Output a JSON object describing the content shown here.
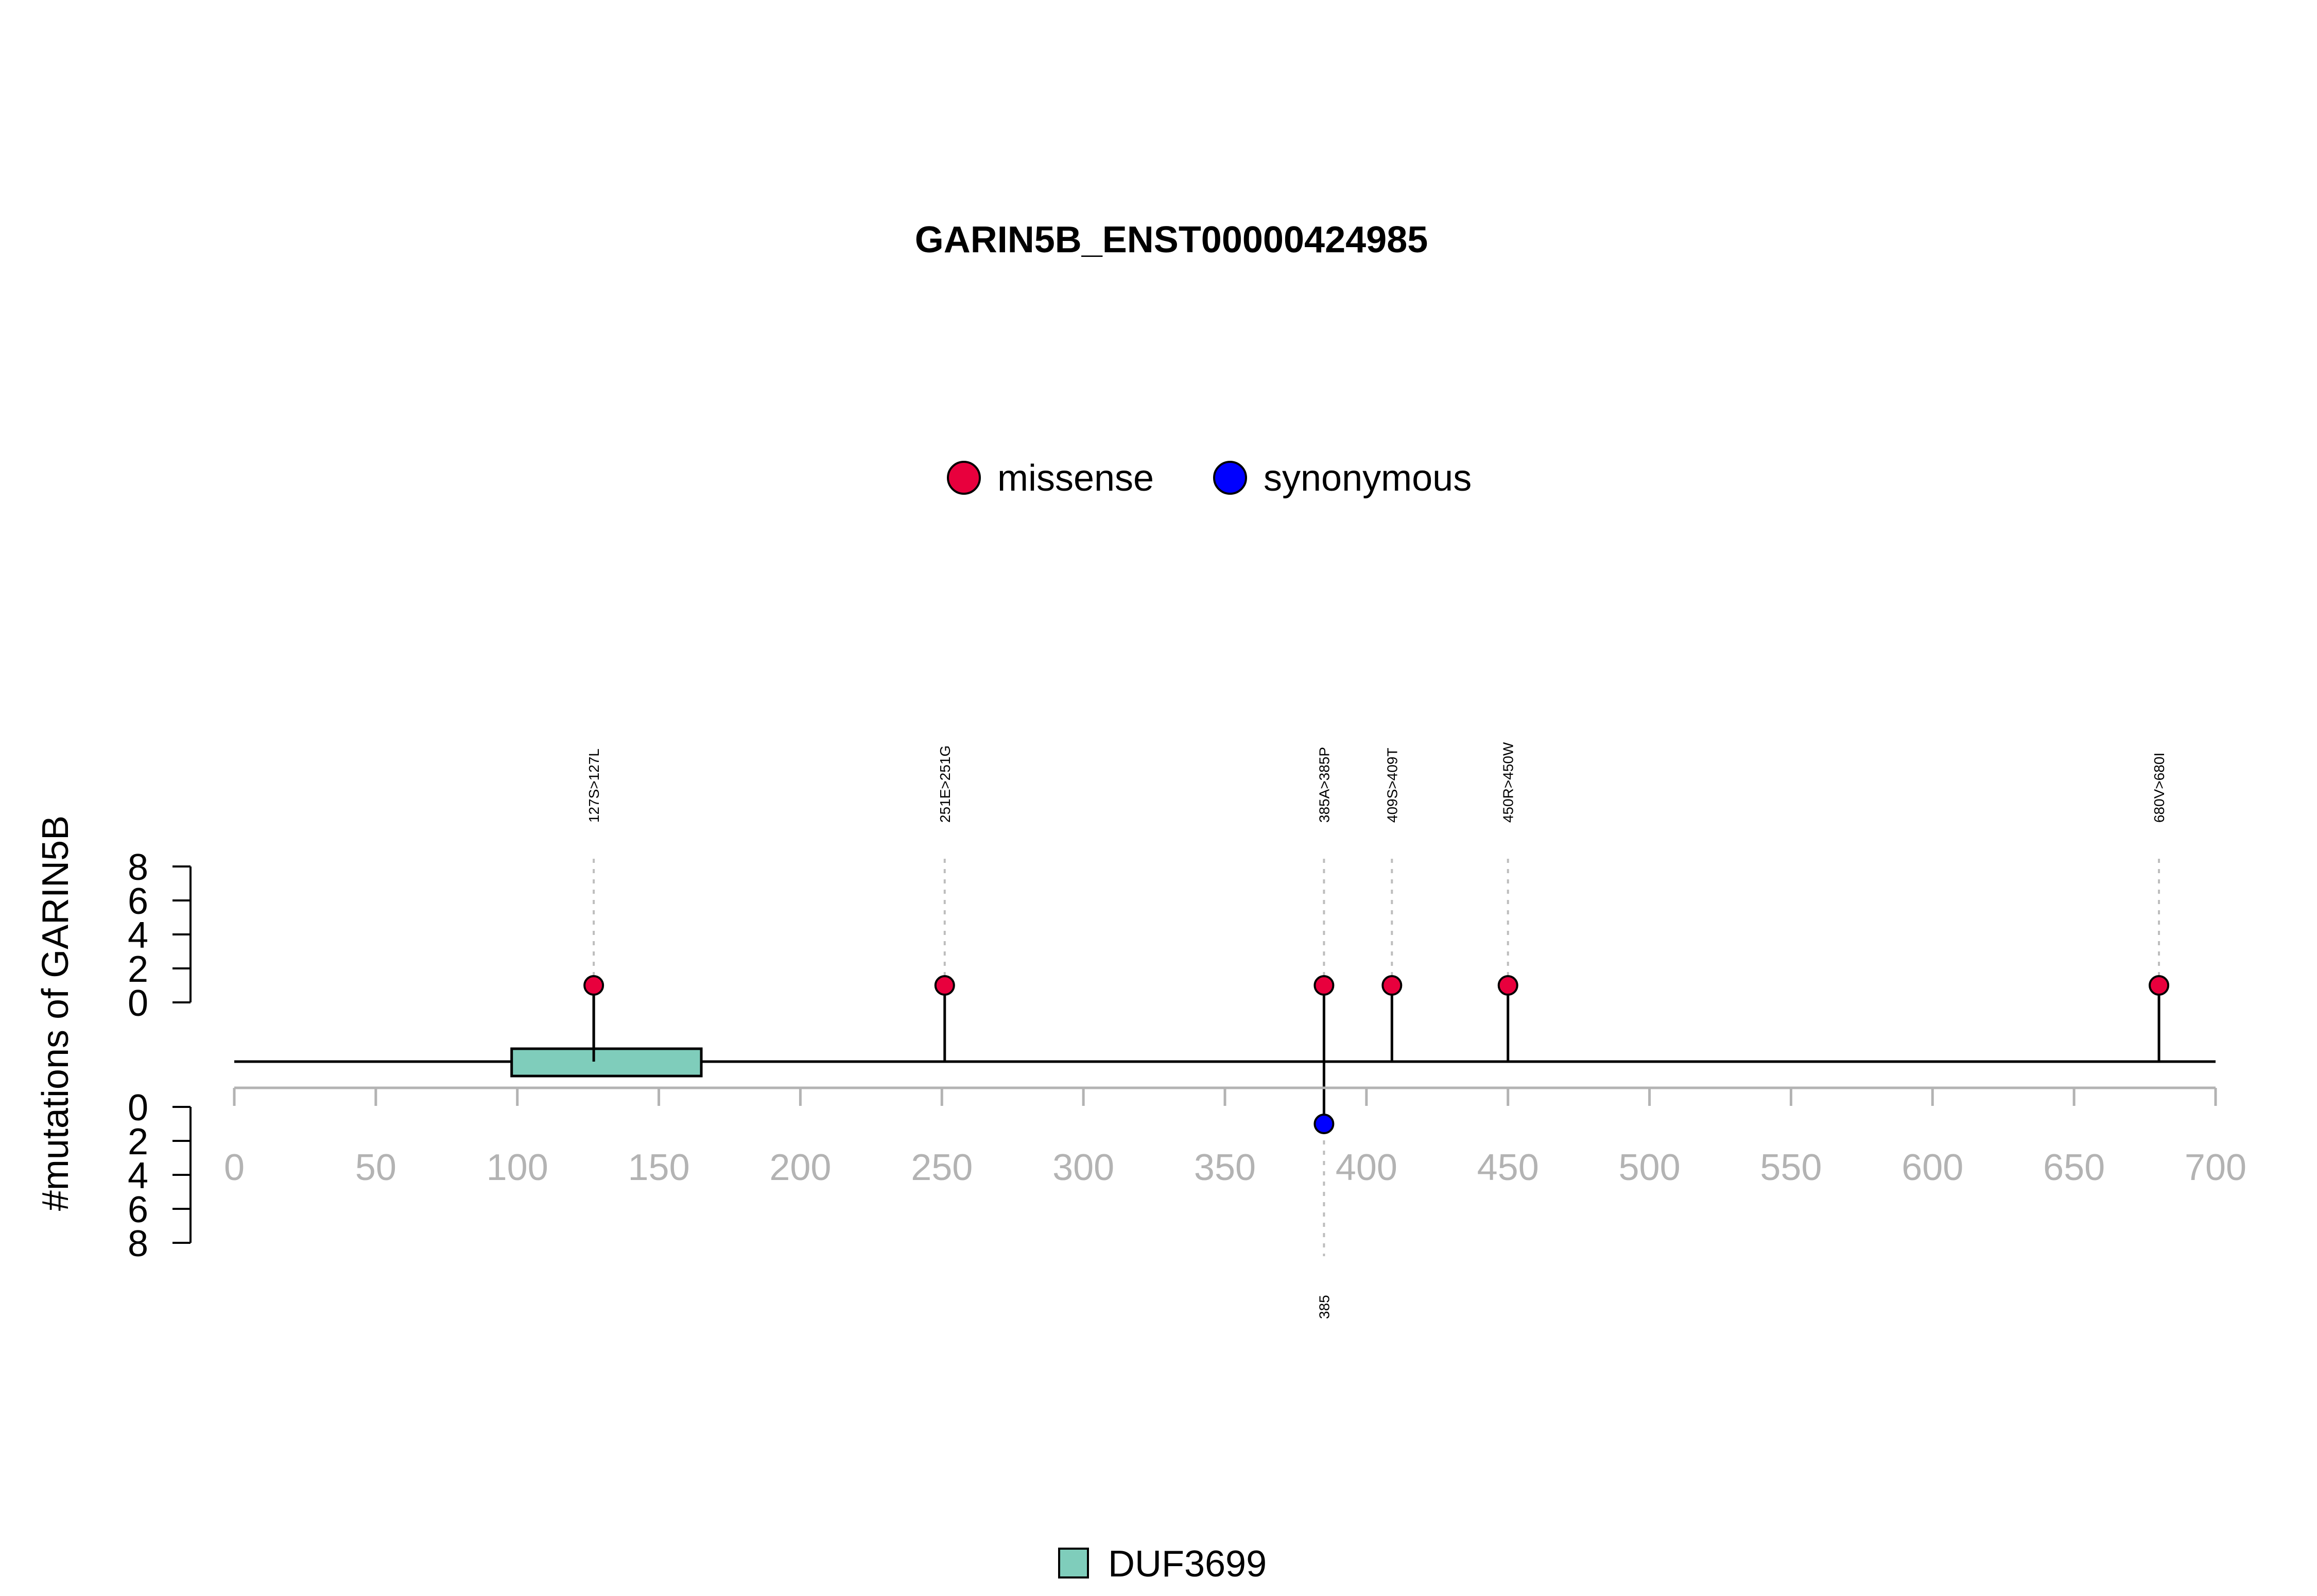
{
  "chart_data": {
    "type": "lollipop",
    "title": "GARIN5B_ENST00000424985",
    "ylabel": "#mutations of GARIN5B",
    "xlim": [
      0,
      700
    ],
    "x_ticks": [
      0,
      50,
      100,
      150,
      200,
      250,
      300,
      350,
      400,
      450,
      500,
      550,
      600,
      650,
      700
    ],
    "y_ticks_top": [
      0,
      2,
      4,
      6,
      8
    ],
    "y_ticks_bottom": [
      0,
      2,
      4,
      6,
      8
    ],
    "legend_top": [
      {
        "label": "missense",
        "color": "#e8003d"
      },
      {
        "label": "synonymous",
        "color": "#0000ff"
      }
    ],
    "legend_bottom": [
      {
        "label": "DUF3699",
        "color": "#7fcdbb"
      }
    ],
    "domains": [
      {
        "name": "DUF3699",
        "start": 98,
        "end": 165,
        "color": "#7fcdbb"
      }
    ],
    "mutations_top": [
      {
        "pos": 127,
        "count": 1,
        "type": "missense",
        "label": "127S>127L"
      },
      {
        "pos": 251,
        "count": 1,
        "type": "missense",
        "label": "251E>251G"
      },
      {
        "pos": 385,
        "count": 1,
        "type": "missense",
        "label": "385A>385P"
      },
      {
        "pos": 409,
        "count": 1,
        "type": "missense",
        "label": "409S>409T"
      },
      {
        "pos": 450,
        "count": 1,
        "type": "missense",
        "label": "450R>450W"
      },
      {
        "pos": 680,
        "count": 1,
        "type": "missense",
        "label": "680V>680I"
      }
    ],
    "mutations_bottom": [
      {
        "pos": 385,
        "count": 1,
        "type": "synonymous",
        "label": "385"
      }
    ],
    "colors": {
      "missense": "#e8003d",
      "synonymous": "#0000ff",
      "domain": "#7fcdbb",
      "axis_gray": "#b3b3b3",
      "guide": "#bdbdbd"
    }
  }
}
